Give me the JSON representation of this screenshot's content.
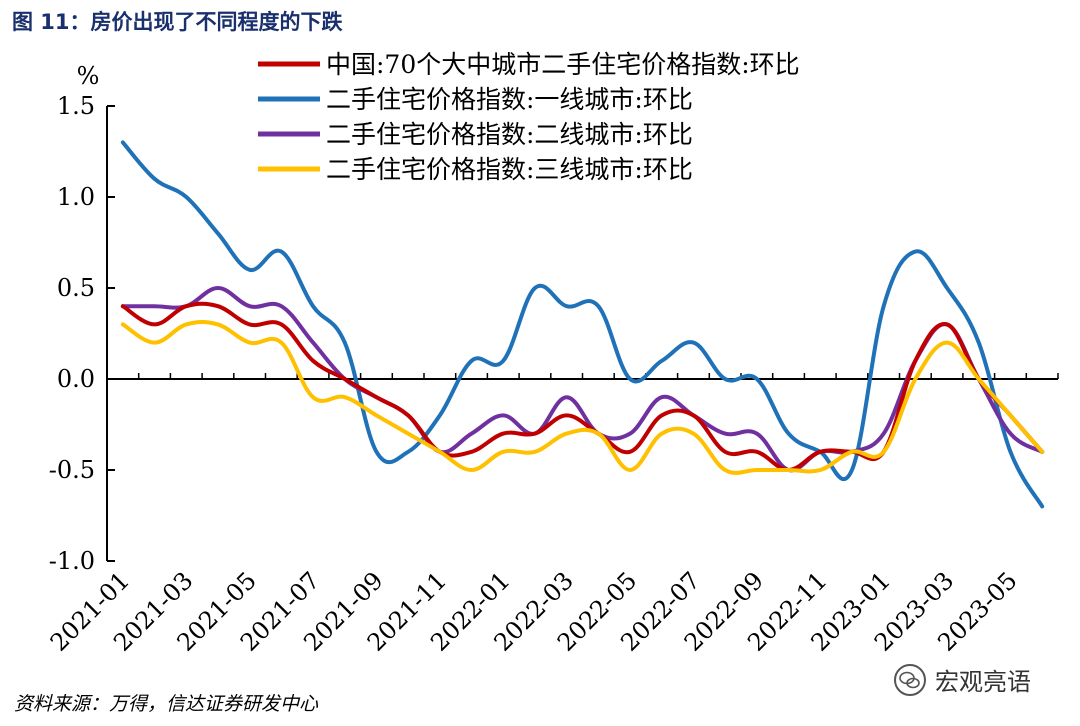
{
  "figure": {
    "title": "图 11：房价出现了不同程度的下跌",
    "source": "资料来源：万得，信达证券研发中心",
    "watermark": "宏观亮语",
    "watermark_icon": "wechat-icon"
  },
  "chart_data": {
    "type": "line",
    "title": "",
    "xlabel": "",
    "ylabel": "%",
    "ylim": [
      -1.0,
      1.5
    ],
    "yticks": [
      -1.0,
      -0.5,
      0.0,
      0.5,
      1.0,
      1.5
    ],
    "ytick_labels": [
      "-1.0",
      "-0.5",
      "0.0",
      "0.5",
      "1.0",
      "1.5"
    ],
    "xtick_labels": [
      "2021-01",
      "2021-03",
      "2021-05",
      "2021-07",
      "2021-09",
      "2021-11",
      "2022-01",
      "2022-03",
      "2022-05",
      "2022-07",
      "2022-09",
      "2022-11",
      "2023-01",
      "2023-03",
      "2023-05"
    ],
    "x": [
      "2021-01",
      "2021-02",
      "2021-03",
      "2021-04",
      "2021-05",
      "2021-06",
      "2021-07",
      "2021-08",
      "2021-09",
      "2021-10",
      "2021-11",
      "2021-12",
      "2022-01",
      "2022-02",
      "2022-03",
      "2022-04",
      "2022-05",
      "2022-06",
      "2022-07",
      "2022-08",
      "2022-09",
      "2022-10",
      "2022-11",
      "2022-12",
      "2023-01",
      "2023-02",
      "2023-03",
      "2023-04",
      "2023-05",
      "2023-06"
    ],
    "grid": false,
    "legend_position": "top",
    "series": [
      {
        "name": "中国:70个大中城市二手住宅价格指数:环比",
        "color": "#c00000",
        "values": [
          0.4,
          0.3,
          0.4,
          0.4,
          0.3,
          0.3,
          0.1,
          0.0,
          -0.1,
          -0.2,
          -0.4,
          -0.4,
          -0.3,
          -0.3,
          -0.2,
          -0.3,
          -0.4,
          -0.2,
          -0.2,
          -0.4,
          -0.4,
          -0.5,
          -0.4,
          -0.4,
          -0.4,
          0.1,
          0.3,
          0.0,
          -0.2,
          -0.4
        ]
      },
      {
        "name": "二手住宅价格指数:一线城市:环比",
        "color": "#1f72b8",
        "values": [
          1.3,
          1.1,
          1.0,
          0.8,
          0.6,
          0.7,
          0.4,
          0.2,
          -0.4,
          -0.4,
          -0.2,
          0.1,
          0.1,
          0.5,
          0.4,
          0.4,
          0.0,
          0.1,
          0.2,
          0.0,
          0.0,
          -0.3,
          -0.4,
          -0.5,
          0.4,
          0.7,
          0.5,
          0.2,
          -0.4,
          -0.7
        ]
      },
      {
        "name": "二手住宅价格指数:二线城市:环比",
        "color": "#7030a0",
        "values": [
          0.4,
          0.4,
          0.4,
          0.5,
          0.4,
          0.4,
          0.2,
          0.0,
          -0.1,
          -0.2,
          -0.4,
          -0.3,
          -0.2,
          -0.3,
          -0.1,
          -0.3,
          -0.3,
          -0.1,
          -0.2,
          -0.3,
          -0.3,
          -0.5,
          -0.4,
          -0.4,
          -0.3,
          0.1,
          0.3,
          0.0,
          -0.3,
          -0.4
        ]
      },
      {
        "name": "二手住宅价格指数:三线城市:环比",
        "color": "#ffc000",
        "values": [
          0.3,
          0.2,
          0.3,
          0.3,
          0.2,
          0.2,
          -0.1,
          -0.1,
          -0.2,
          -0.3,
          -0.4,
          -0.5,
          -0.4,
          -0.4,
          -0.3,
          -0.3,
          -0.5,
          -0.3,
          -0.3,
          -0.5,
          -0.5,
          -0.5,
          -0.5,
          -0.4,
          -0.4,
          0.0,
          0.2,
          0.0,
          -0.2,
          -0.4
        ]
      }
    ]
  }
}
